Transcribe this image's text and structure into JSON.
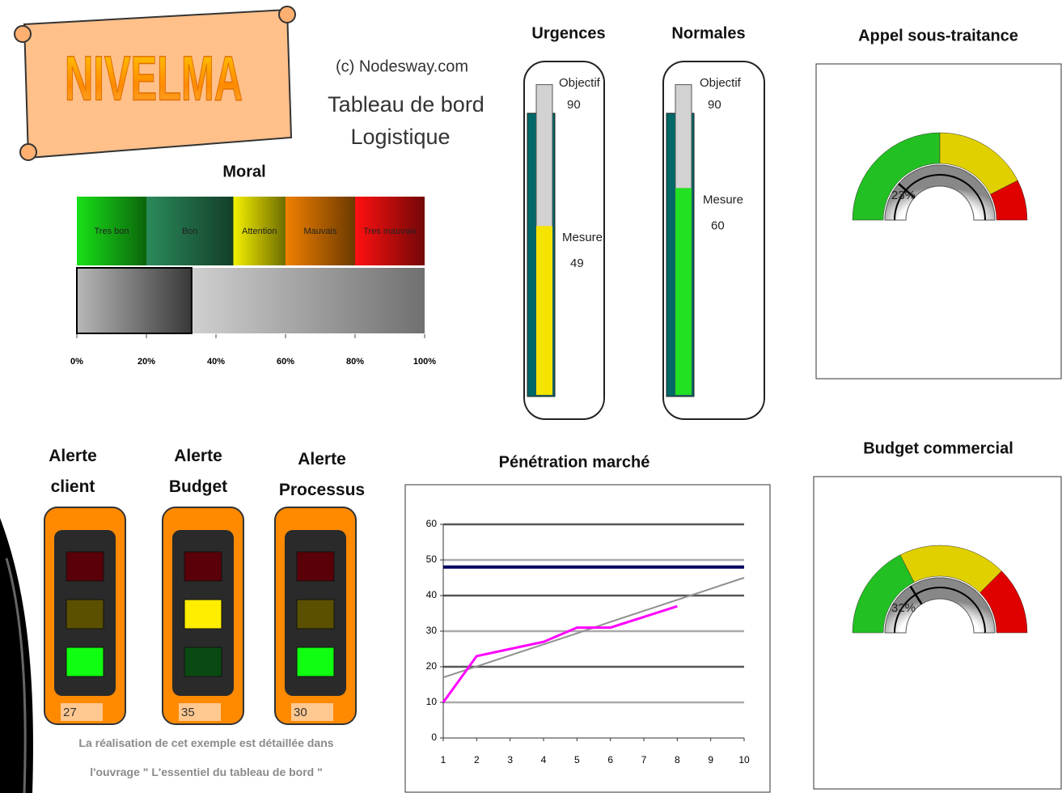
{
  "header": {
    "logo": "NIVELMA",
    "copyright": "(c) Nodesway.com",
    "title": "Tableau de bord",
    "subtitle": "Logistique"
  },
  "chart_data": [
    {
      "type": "stacked-bar",
      "title": "Moral",
      "orientation": "horizontal",
      "categories": [
        "Tres bon",
        "Bon",
        "Attention",
        "Mauvais",
        "Tres mauvais"
      ],
      "values": [
        20,
        25,
        15,
        20,
        20
      ],
      "colors": [
        "#18e018",
        "#2a8a5a",
        "#f4f000",
        "#f08000",
        "#ff1010"
      ],
      "indicator": {
        "value": 33,
        "color": "#4a4a4a"
      },
      "xlim": [
        0,
        100
      ],
      "xticks": [
        {
          "value": 0,
          "label": "0%"
        },
        {
          "value": 20,
          "label": "20%"
        },
        {
          "value": 40,
          "label": "40%"
        },
        {
          "value": 60,
          "label": "60%"
        },
        {
          "value": 80,
          "label": "80%"
        },
        {
          "value": 100,
          "label": "100%"
        }
      ]
    },
    {
      "type": "thermometer",
      "title": "Urgences",
      "ylim": [
        0,
        100
      ],
      "series": [
        {
          "name": "Objectif",
          "color": "#d2d2d2",
          "values": [
            90
          ]
        },
        {
          "name": "Mesure",
          "color": "#f4e400",
          "values": [
            49
          ]
        }
      ]
    },
    {
      "type": "thermometer",
      "title": "Normales",
      "ylim": [
        0,
        100
      ],
      "series": [
        {
          "name": "Objectif",
          "color": "#d2d2d2",
          "values": [
            90
          ]
        },
        {
          "name": "Mesure",
          "color": "#22e022",
          "values": [
            60
          ]
        }
      ]
    },
    {
      "type": "gauge",
      "title": "Appel sous-traitance",
      "ylim": [
        0,
        100
      ],
      "values": [
        23
      ],
      "value_labels": [
        "23%"
      ],
      "bands": [
        {
          "color": "#22c022",
          "value": 50
        },
        {
          "color": "#e0d000",
          "value": 35
        },
        {
          "color": "#e00000",
          "value": 15
        }
      ]
    },
    {
      "type": "gauge",
      "title": "Budget commercial",
      "ylim": [
        0,
        100
      ],
      "values": [
        32
      ],
      "value_labels": [
        "32%"
      ],
      "bands": [
        {
          "color": "#22c022",
          "value": 35
        },
        {
          "color": "#e0d000",
          "value": 40
        },
        {
          "color": "#e00000",
          "value": 25
        }
      ]
    },
    {
      "type": "line",
      "title": "Pénétration marché",
      "x": [
        1,
        2,
        3,
        4,
        5,
        6,
        7,
        8,
        9,
        10
      ],
      "series": [
        {
          "color": "#000060",
          "values": [
            48,
            48,
            48,
            48,
            48,
            48,
            48,
            48,
            48,
            48
          ]
        },
        {
          "color": "#909090",
          "values": [
            17,
            20.1,
            23.2,
            26.3,
            29.4,
            32.6,
            35.7,
            38.8,
            41.9,
            45
          ]
        },
        {
          "color": "#ff00ff",
          "values": [
            10,
            23,
            25,
            27,
            31,
            31,
            34,
            37,
            null,
            null
          ]
        }
      ],
      "xlim": [
        1,
        10
      ],
      "xticks": [
        1,
        2,
        3,
        4,
        5,
        6,
        7,
        8,
        9,
        10
      ],
      "ylim": [
        0,
        60
      ],
      "yticks": [
        0,
        10,
        20,
        30,
        40,
        50,
        60
      ],
      "grid": true
    }
  ],
  "alerts": [
    {
      "title": "Alerte client",
      "value": 27,
      "state": "green"
    },
    {
      "title": "Alerte Budget",
      "value": 35,
      "state": "yellow"
    },
    {
      "title": "Alerte Processus",
      "value": 30,
      "state": "green"
    }
  ],
  "footer": [
    "La réalisation de cet exemple est détaillée dans",
    "l'ouvrage \" L'essentiel du tableau de bord \""
  ]
}
